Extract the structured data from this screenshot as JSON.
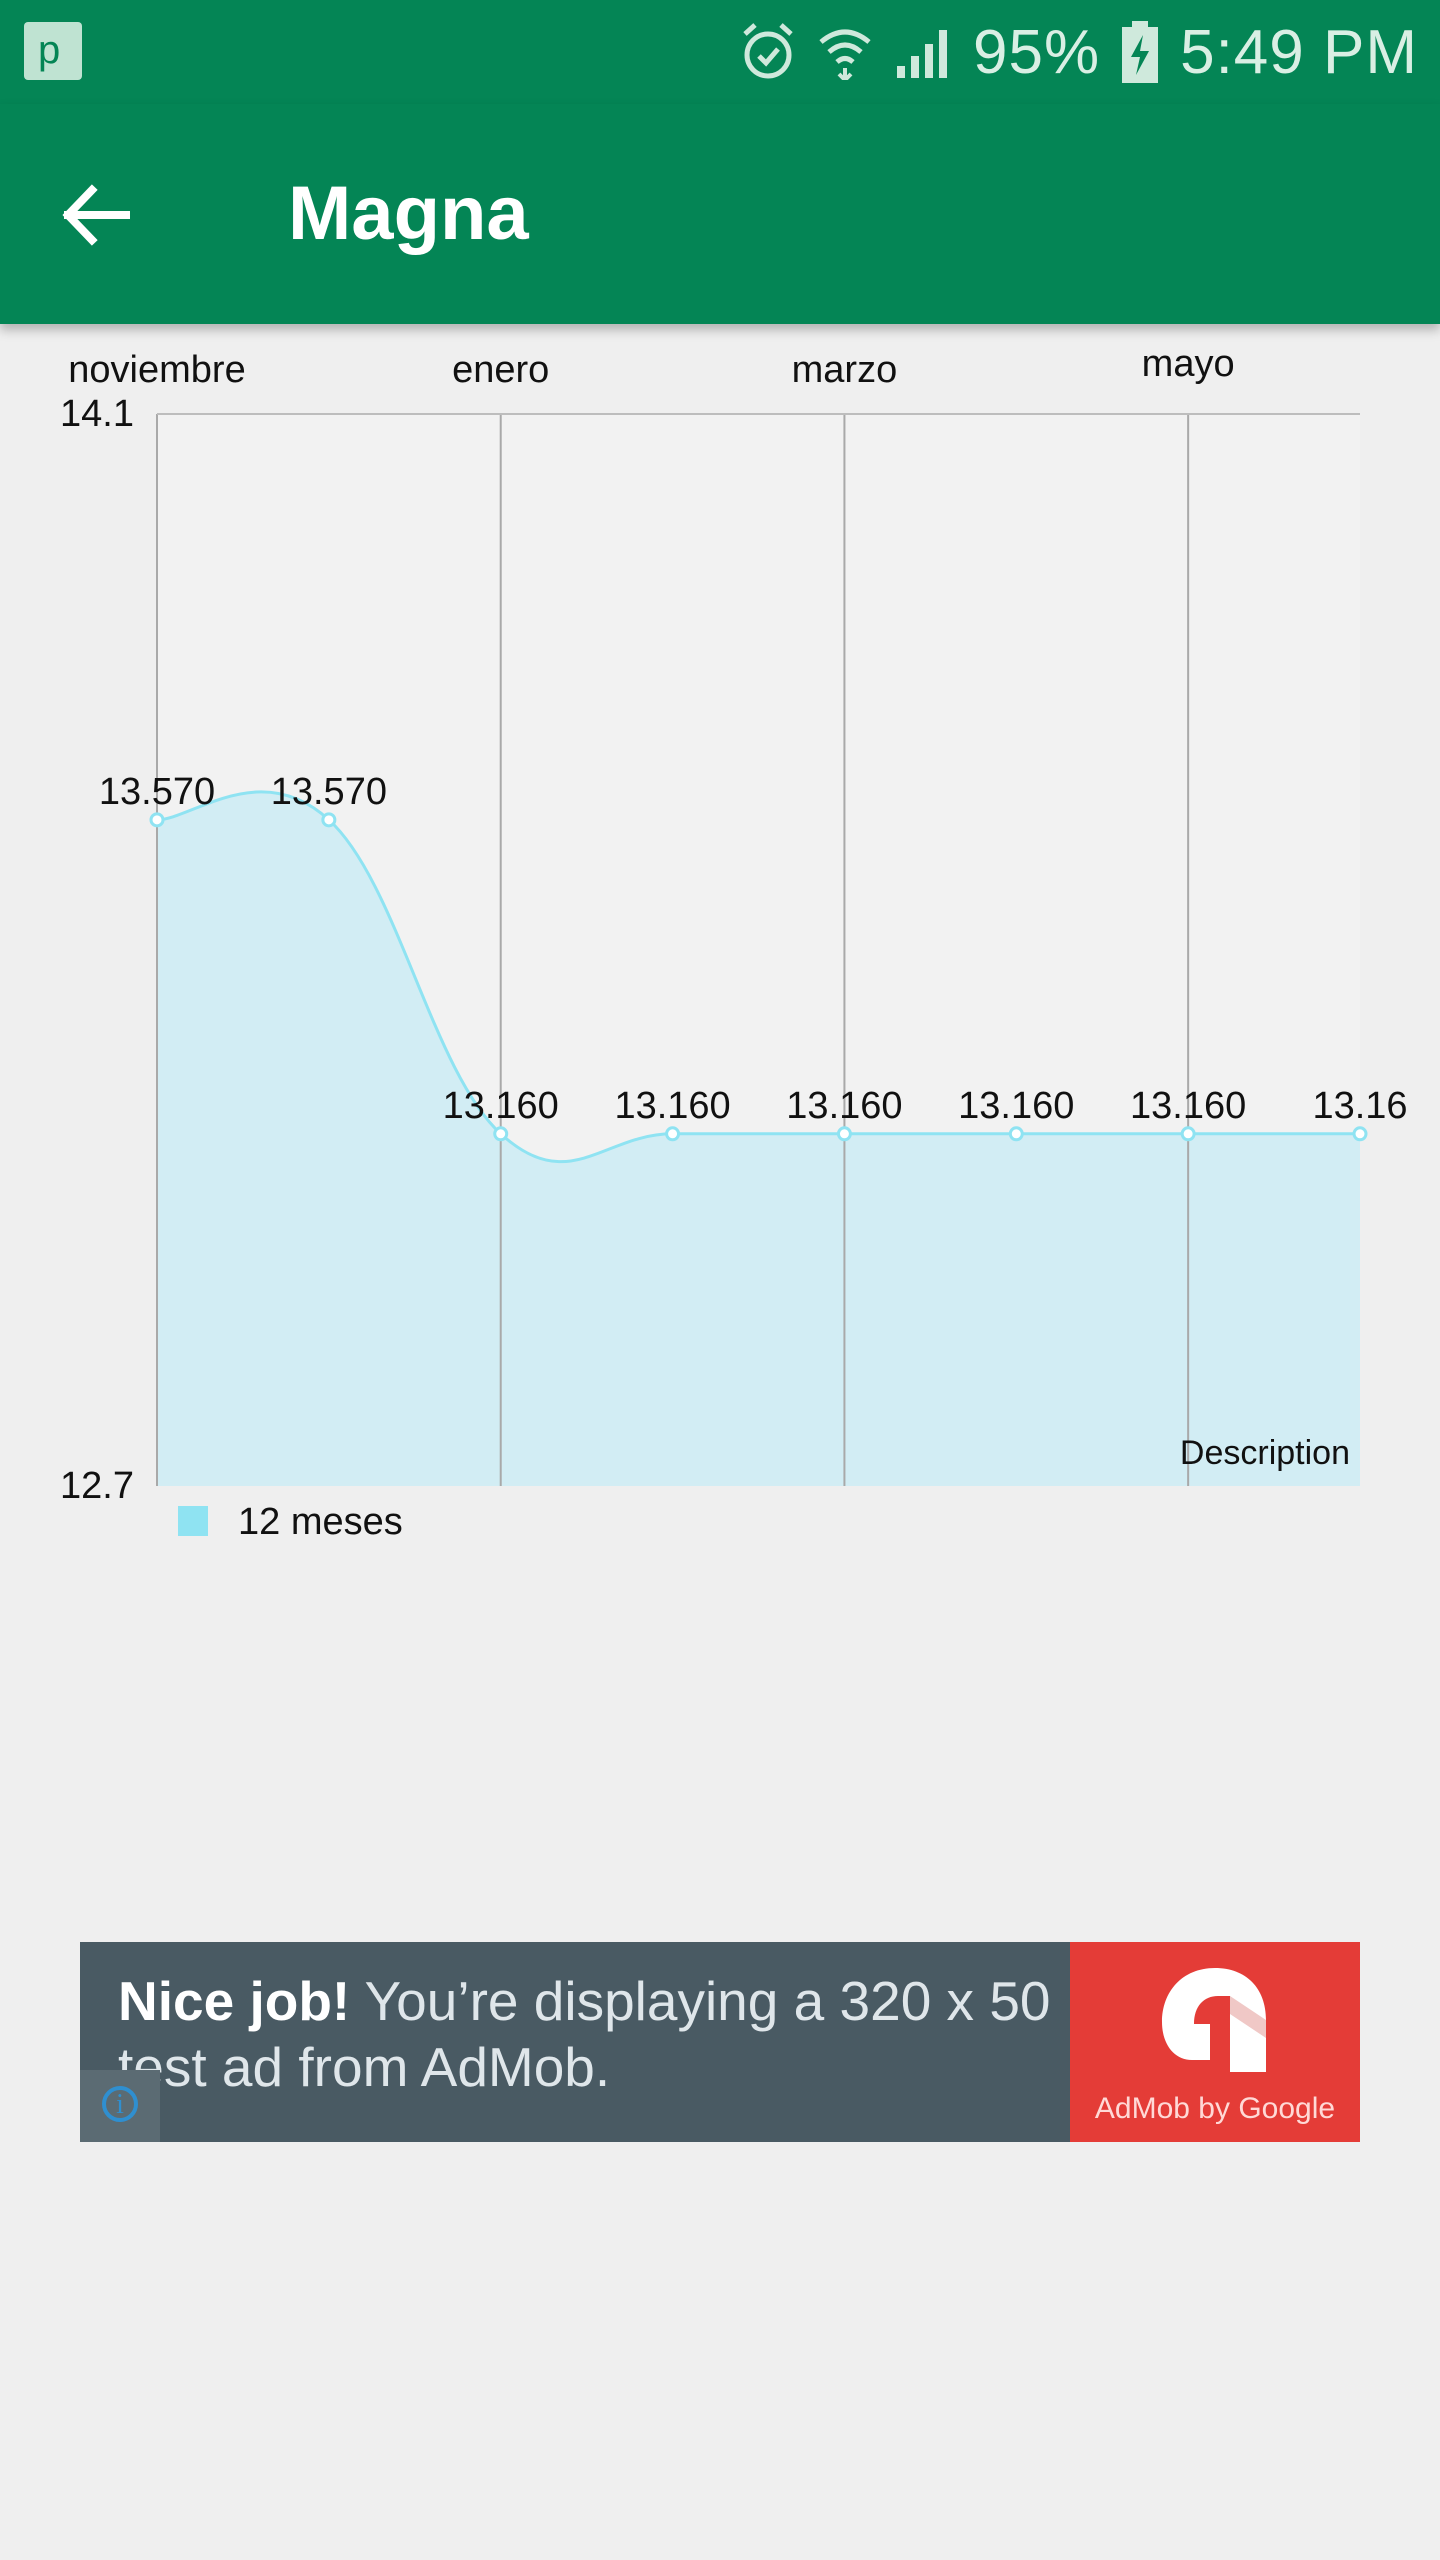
{
  "status_bar": {
    "battery": "95%",
    "time": "5:49 PM",
    "icons": [
      "alarm-icon",
      "wifi-icon",
      "signal-icon",
      "battery-charging-icon"
    ]
  },
  "app_bar": {
    "title": "Magna",
    "back_icon": "arrow-left-icon"
  },
  "chart_data": {
    "type": "line",
    "filled": true,
    "smooth": true,
    "x_tick_labels": [
      "noviembre",
      "enero",
      "marzo",
      "mayo"
    ],
    "y_tick_labels": [
      "14.1",
      "12.7"
    ],
    "ylim": [
      12.7,
      14.1
    ],
    "x": [
      0,
      1,
      2,
      3,
      4,
      5,
      6,
      7
    ],
    "series": [
      {
        "name": "12 meses",
        "values": [
          13.57,
          13.57,
          13.16,
          13.16,
          13.16,
          13.16,
          13.16,
          13.16
        ],
        "value_labels": [
          "13.570",
          "13.570",
          "13.160",
          "13.160",
          "13.160",
          "13.160",
          "13.160",
          "13.16"
        ],
        "color": "#8fe3f2",
        "fill": "#d2edf4"
      }
    ],
    "description": "Description",
    "legend_position": "bottom-left",
    "grid": true
  },
  "ad": {
    "headline": "Nice job!",
    "body": "You’re displaying a 320 x 50 test ad from AdMob.",
    "brand": "AdMob by Google",
    "info_icon": "info-icon"
  }
}
